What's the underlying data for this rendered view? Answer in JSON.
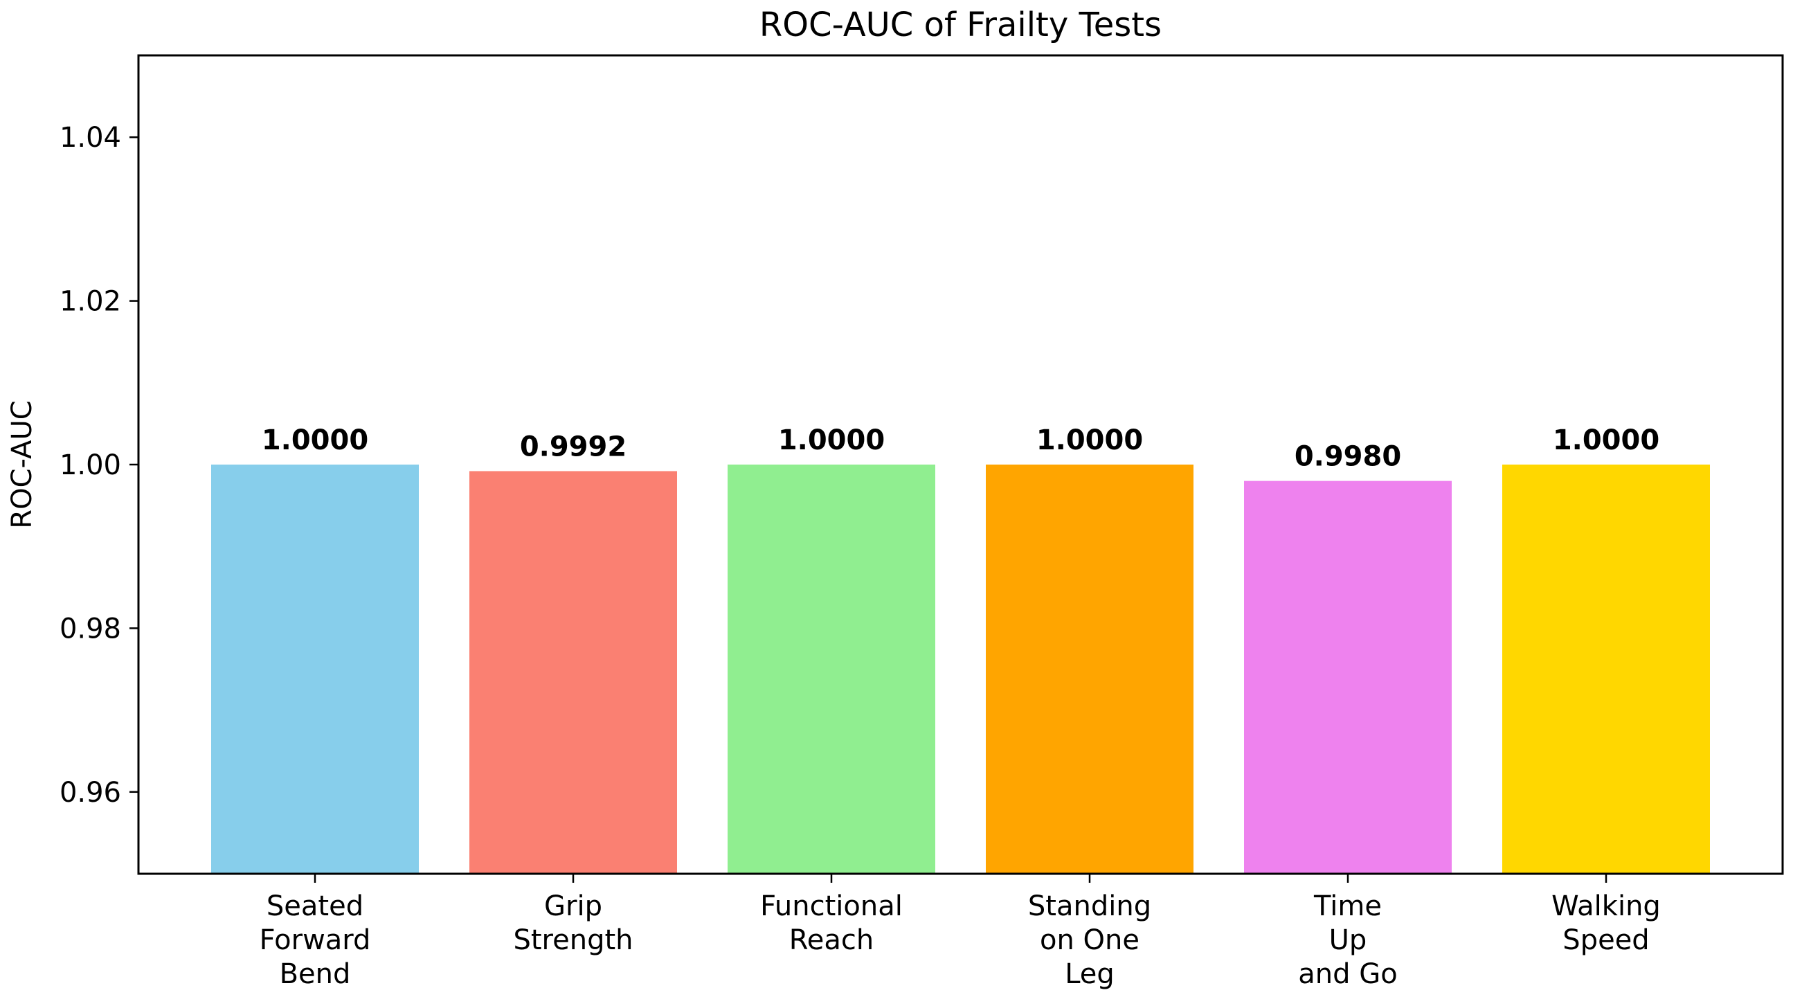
{
  "chart_data": {
    "type": "bar",
    "title": "ROC-AUC of Frailty Tests",
    "xlabel": "",
    "ylabel": "ROC-AUC",
    "ylim": [
      0.95,
      1.05
    ],
    "yticks": [
      0.96,
      0.98,
      1.0,
      1.02,
      1.04
    ],
    "ytick_labels": [
      "0.96",
      "0.98",
      "1.00",
      "1.02",
      "1.04"
    ],
    "grid": false,
    "categories": [
      [
        "Seated",
        "Forward",
        "Bend"
      ],
      [
        "Grip",
        "Strength"
      ],
      [
        "Functional",
        "Reach"
      ],
      [
        "Standing",
        "on One",
        "Leg"
      ],
      [
        "Time",
        "Up",
        "and Go"
      ],
      [
        "Walking",
        "Speed"
      ]
    ],
    "values": [
      1.0,
      0.9992,
      1.0,
      1.0,
      0.998,
      1.0
    ],
    "value_labels": [
      "1.0000",
      "0.9992",
      "1.0000",
      "1.0000",
      "0.9980",
      "1.0000"
    ],
    "colors": [
      "#87CEEB",
      "#FA8072",
      "#90EE90",
      "#FFA500",
      "#EE82EE",
      "#FFD700"
    ]
  }
}
